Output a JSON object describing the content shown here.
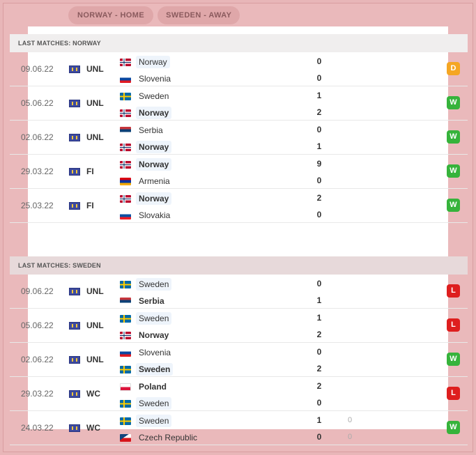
{
  "tabs": [
    "NORWAY - HOME",
    "SWEDEN - AWAY"
  ],
  "sections": [
    {
      "title": "LAST MATCHES: NORWAY",
      "matches": [
        {
          "date": "09.06.22",
          "comp": "UNL",
          "home": {
            "name": "Norway",
            "flag": "nor"
          },
          "away": {
            "name": "Slovenia",
            "flag": "svn"
          },
          "hs": "0",
          "as": "0",
          "hl": "home",
          "res": "D"
        },
        {
          "date": "05.06.22",
          "comp": "UNL",
          "home": {
            "name": "Sweden",
            "flag": "swe"
          },
          "away": {
            "name": "Norway",
            "flag": "nor"
          },
          "hs": "1",
          "as": "2",
          "hl": "away",
          "win": "away",
          "res": "W"
        },
        {
          "date": "02.06.22",
          "comp": "UNL",
          "home": {
            "name": "Serbia",
            "flag": "srb"
          },
          "away": {
            "name": "Norway",
            "flag": "nor"
          },
          "hs": "0",
          "as": "1",
          "hl": "away",
          "win": "away",
          "res": "W"
        },
        {
          "date": "29.03.22",
          "comp": "FI",
          "home": {
            "name": "Norway",
            "flag": "nor"
          },
          "away": {
            "name": "Armenia",
            "flag": "arm"
          },
          "hs": "9",
          "as": "0",
          "hl": "home",
          "win": "home",
          "res": "W"
        },
        {
          "date": "25.03.22",
          "comp": "FI",
          "home": {
            "name": "Norway",
            "flag": "nor"
          },
          "away": {
            "name": "Slovakia",
            "flag": "svk"
          },
          "hs": "2",
          "as": "0",
          "hl": "home",
          "win": "home",
          "res": "W"
        }
      ]
    },
    {
      "title": "LAST MATCHES: SWEDEN",
      "matches": [
        {
          "date": "09.06.22",
          "comp": "UNL",
          "home": {
            "name": "Sweden",
            "flag": "swe"
          },
          "away": {
            "name": "Serbia",
            "flag": "srb"
          },
          "hs": "0",
          "as": "1",
          "hl": "home",
          "win": "away",
          "res": "L"
        },
        {
          "date": "05.06.22",
          "comp": "UNL",
          "home": {
            "name": "Sweden",
            "flag": "swe"
          },
          "away": {
            "name": "Norway",
            "flag": "nor"
          },
          "hs": "1",
          "as": "2",
          "hl": "home",
          "win": "away",
          "res": "L"
        },
        {
          "date": "02.06.22",
          "comp": "UNL",
          "home": {
            "name": "Slovenia",
            "flag": "svn"
          },
          "away": {
            "name": "Sweden",
            "flag": "swe"
          },
          "hs": "0",
          "as": "2",
          "hl": "away",
          "win": "away",
          "res": "W"
        },
        {
          "date": "29.03.22",
          "comp": "WC",
          "home": {
            "name": "Poland",
            "flag": "pol"
          },
          "away": {
            "name": "Sweden",
            "flag": "swe"
          },
          "hs": "2",
          "as": "0",
          "hl": "away",
          "win": "home",
          "res": "L"
        },
        {
          "date": "24.03.22",
          "comp": "WC",
          "home": {
            "name": "Sweden",
            "flag": "swe"
          },
          "away": {
            "name": "Czech Republic",
            "flag": "cze"
          },
          "hs": "1",
          "as": "0",
          "hp": "0",
          "ap": "0",
          "hl": "home",
          "res": "W"
        }
      ]
    }
  ],
  "colors": {
    "win": "#36b33b",
    "draw": "#f5a623",
    "loss": "#de1e1e",
    "overlay": "#e8b6b8"
  }
}
